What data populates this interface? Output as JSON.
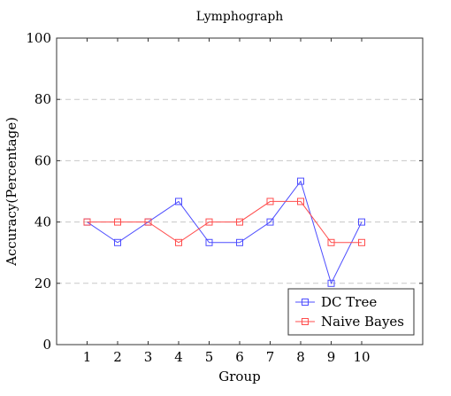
{
  "chart_data": {
    "type": "line",
    "title": "Lymphograph",
    "xlabel": "Group",
    "ylabel": "Accuracy(Percentage)",
    "x": [
      1,
      2,
      3,
      4,
      5,
      6,
      7,
      8,
      9,
      10
    ],
    "x_ticks": [
      "1",
      "2",
      "3",
      "4",
      "5",
      "6",
      "7",
      "8",
      "9",
      "10"
    ],
    "xlim": [
      0,
      12
    ],
    "ylim": [
      0,
      100
    ],
    "y_ticks": [
      "0",
      "20",
      "40",
      "60",
      "80",
      "100"
    ],
    "y_tick_values": [
      0,
      20,
      40,
      60,
      80,
      100
    ],
    "grid": "horizontal dashed",
    "legend_position": "bottom-right",
    "series": [
      {
        "name": "DC Tree",
        "color": "#4d4dff",
        "marker": "square",
        "values": [
          40,
          33.3,
          40,
          46.7,
          33.3,
          33.3,
          40,
          53.3,
          20,
          40
        ]
      },
      {
        "name": "Naive Bayes",
        "color": "#ff4d4d",
        "marker": "square",
        "values": [
          40,
          40,
          40,
          33.3,
          40,
          40,
          46.7,
          46.7,
          33.3,
          33.3
        ]
      }
    ]
  }
}
